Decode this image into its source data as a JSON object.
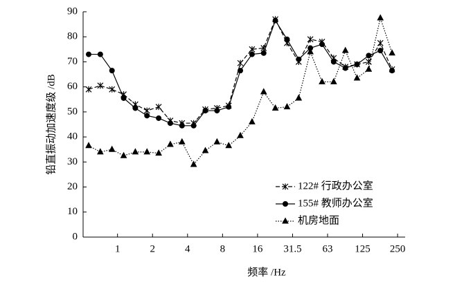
{
  "chart_data": {
    "type": "line",
    "ylabel": "铅直振动加速度级 /dB",
    "xlabel": "频率 /Hz",
    "categories": [
      null,
      null,
      "1",
      null,
      null,
      "2",
      null,
      null,
      "4",
      null,
      null,
      "8",
      null,
      null,
      "16",
      null,
      null,
      "31.5",
      null,
      null,
      "63",
      null,
      null,
      "125",
      null,
      null,
      "250"
    ],
    "series": [
      {
        "name": "122# 行政办公室",
        "color": "#000000",
        "marker": "x",
        "dash": "dashed",
        "values": [
          59,
          60.5,
          59,
          57,
          53,
          50.5,
          52,
          46.5,
          45.5,
          45.5,
          51,
          51.5,
          52.5,
          69.5,
          75,
          75.5,
          87,
          77.5,
          70,
          79,
          78,
          71.5,
          68,
          69,
          70,
          77.5,
          67
        ]
      },
      {
        "name": "155# 教师办公室",
        "color": "#000000",
        "marker": "circle",
        "dash": "solid",
        "values": [
          73,
          73,
          66.5,
          55.5,
          51.5,
          48.5,
          47.5,
          45.5,
          44.5,
          44.5,
          50.5,
          50.5,
          52,
          66.5,
          73,
          73.5,
          86.5,
          79,
          71,
          75.5,
          77,
          70,
          67.5,
          69,
          72.5,
          74.5,
          66.5
        ]
      },
      {
        "name": "机房地面",
        "color": "#000000",
        "marker": "triangle",
        "dash": "dotted",
        "values": [
          36.5,
          34,
          35,
          32.5,
          34,
          34,
          33.5,
          37,
          38,
          29,
          34.5,
          38,
          36.5,
          40.5,
          46,
          58,
          51.5,
          52,
          55.5,
          74,
          62,
          62,
          74.5,
          63.5,
          67,
          87.5,
          73.5
        ]
      }
    ],
    "ylim": [
      0,
      90
    ],
    "yticks": [
      0,
      10,
      20,
      30,
      40,
      50,
      60,
      70,
      80,
      90
    ],
    "grid": false,
    "legend": "lower right"
  }
}
